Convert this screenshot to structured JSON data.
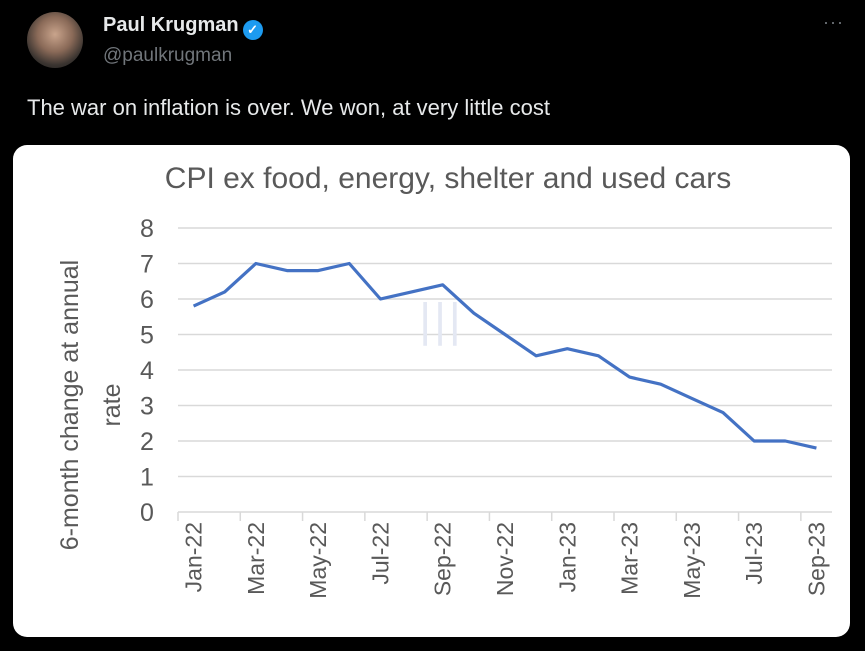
{
  "tweet": {
    "author_name": "Paul Krugman",
    "handle": "@paulkrugman",
    "text": "The war on inflation is over. We won, at very little cost",
    "more_label": "···",
    "verified_icon": "✓"
  },
  "chart_data": {
    "type": "line",
    "title": "CPI ex food, energy, shelter and used cars",
    "ylabel_lines": [
      "6-month change at annual",
      "rate"
    ],
    "xlabel": "",
    "categories": [
      "Jan-22",
      "Feb-22",
      "Mar-22",
      "Apr-22",
      "May-22",
      "Jun-22",
      "Jul-22",
      "Aug-22",
      "Sep-22",
      "Oct-22",
      "Nov-22",
      "Dec-22",
      "Jan-23",
      "Feb-23",
      "Mar-23",
      "Apr-23",
      "May-23",
      "Jun-23",
      "Jul-23",
      "Aug-23",
      "Sep-23"
    ],
    "tick_labels": [
      "Jan-22",
      "Mar-22",
      "May-22",
      "Jul-22",
      "Sep-22",
      "Nov-22",
      "Jan-23",
      "Mar-23",
      "May-23",
      "Jul-23",
      "Sep-23"
    ],
    "series": [
      {
        "name": "CPI ex food, energy, shelter and used cars",
        "color": "#4472c4",
        "values": [
          5.8,
          6.2,
          7.0,
          6.8,
          6.8,
          7.0,
          6.0,
          6.2,
          6.4,
          5.6,
          5.0,
          4.4,
          4.6,
          4.4,
          3.8,
          3.6,
          3.2,
          2.8,
          2.0,
          2.0,
          1.8
        ]
      }
    ],
    "ylim": [
      0,
      8
    ],
    "yticks": [
      0,
      1,
      2,
      3,
      4,
      5,
      6,
      7,
      8
    ],
    "grid": true
  }
}
